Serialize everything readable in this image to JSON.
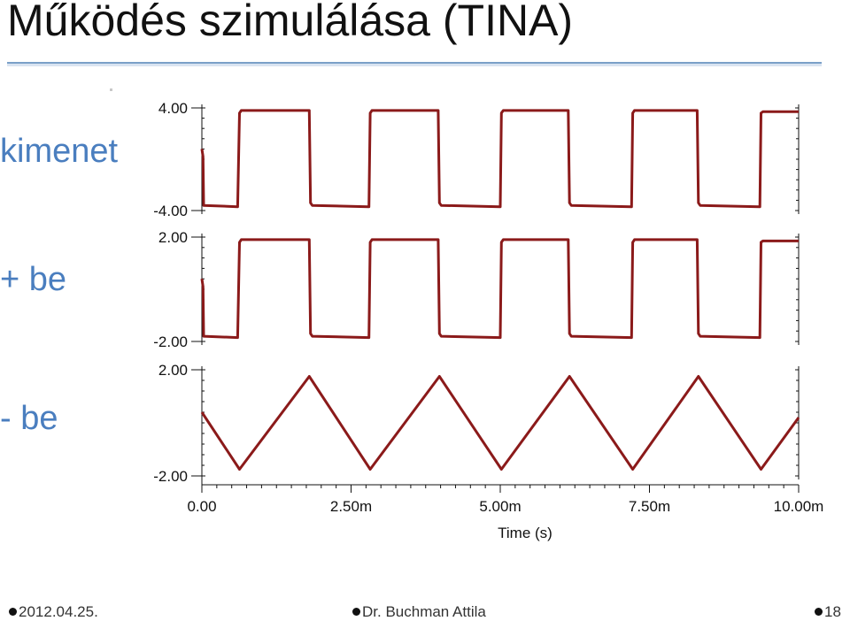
{
  "slide": {
    "title": "Működés szimulálása (TINA)",
    "footer": {
      "date": "2012.04.25.",
      "author": "Dr. Buchman Attila",
      "page": "18"
    }
  },
  "colors": {
    "trace": "#8b1a1a",
    "label": "#4a7ebf",
    "axis": "#111111",
    "title_rule": "#7aa0c8"
  },
  "chart_data": {
    "type": "line",
    "xlabel": "Time (s)",
    "x_ticks": [
      {
        "value": 0,
        "label": "0.00"
      },
      {
        "value": 2.5,
        "label": "2.50m"
      },
      {
        "value": 5.0,
        "label": "5.00m"
      },
      {
        "value": 7.5,
        "label": "7.50m"
      },
      {
        "value": 10.0,
        "label": "10.00m"
      }
    ],
    "xlim": [
      0,
      10.0
    ],
    "x_unit": "ms",
    "grid": false,
    "panels": [
      {
        "label": "kimenet",
        "ylim": [
          -4.0,
          4.0
        ],
        "y_tick_labels": [
          "4.00",
          "-4.00"
        ],
        "series": [
          {
            "x": [
              0,
              0.02,
              0.03,
              0.6,
              0.63,
              0.66,
              1.8,
              1.82,
              1.85,
              2.8,
              2.82,
              2.85,
              3.96,
              3.98,
              4.01,
              5.0,
              5.02,
              5.05,
              6.14,
              6.16,
              6.19,
              7.2,
              7.22,
              7.25,
              8.3,
              8.32,
              8.35,
              9.35,
              9.37,
              9.4,
              10.0
            ],
            "values": [
              0.8,
              0.2,
              -3.6,
              -3.7,
              3.6,
              3.8,
              3.8,
              -3.4,
              -3.6,
              -3.7,
              3.6,
              3.8,
              3.8,
              -3.4,
              -3.6,
              -3.7,
              3.6,
              3.8,
              3.8,
              -3.4,
              -3.6,
              -3.7,
              3.6,
              3.8,
              3.8,
              -3.4,
              -3.6,
              -3.7,
              3.6,
              3.7,
              3.7
            ]
          }
        ]
      },
      {
        "label": "+ be",
        "ylim": [
          -2.0,
          2.0
        ],
        "y_tick_labels": [
          "2.00",
          "-2.00"
        ],
        "series": [
          {
            "x": [
              0,
              0.02,
              0.03,
              0.6,
              0.63,
              0.66,
              1.8,
              1.82,
              1.85,
              2.8,
              2.82,
              2.85,
              3.96,
              3.98,
              4.01,
              5.0,
              5.02,
              5.05,
              6.14,
              6.16,
              6.19,
              7.2,
              7.22,
              7.25,
              8.3,
              8.32,
              8.35,
              9.35,
              9.37,
              9.4,
              10.0
            ],
            "values": [
              0.4,
              0.1,
              -1.8,
              -1.85,
              1.8,
              1.9,
              1.9,
              -1.7,
              -1.8,
              -1.85,
              1.8,
              1.9,
              1.9,
              -1.7,
              -1.8,
              -1.85,
              1.8,
              1.9,
              1.9,
              -1.7,
              -1.8,
              -1.85,
              1.8,
              1.9,
              1.9,
              -1.7,
              -1.8,
              -1.85,
              1.8,
              1.85,
              1.85
            ]
          }
        ]
      },
      {
        "label": "- be",
        "ylim": [
          -2.0,
          2.0
        ],
        "y_tick_labels": [
          "2.00",
          "-2.00"
        ],
        "series": [
          {
            "x": [
              0,
              0.63,
              1.8,
              2.82,
              3.98,
              5.02,
              6.16,
              7.22,
              8.32,
              9.37,
              10.0
            ],
            "values": [
              0.4,
              -1.75,
              1.75,
              -1.75,
              1.75,
              -1.75,
              1.75,
              -1.75,
              1.75,
              -1.75,
              0.2
            ]
          }
        ]
      }
    ]
  }
}
